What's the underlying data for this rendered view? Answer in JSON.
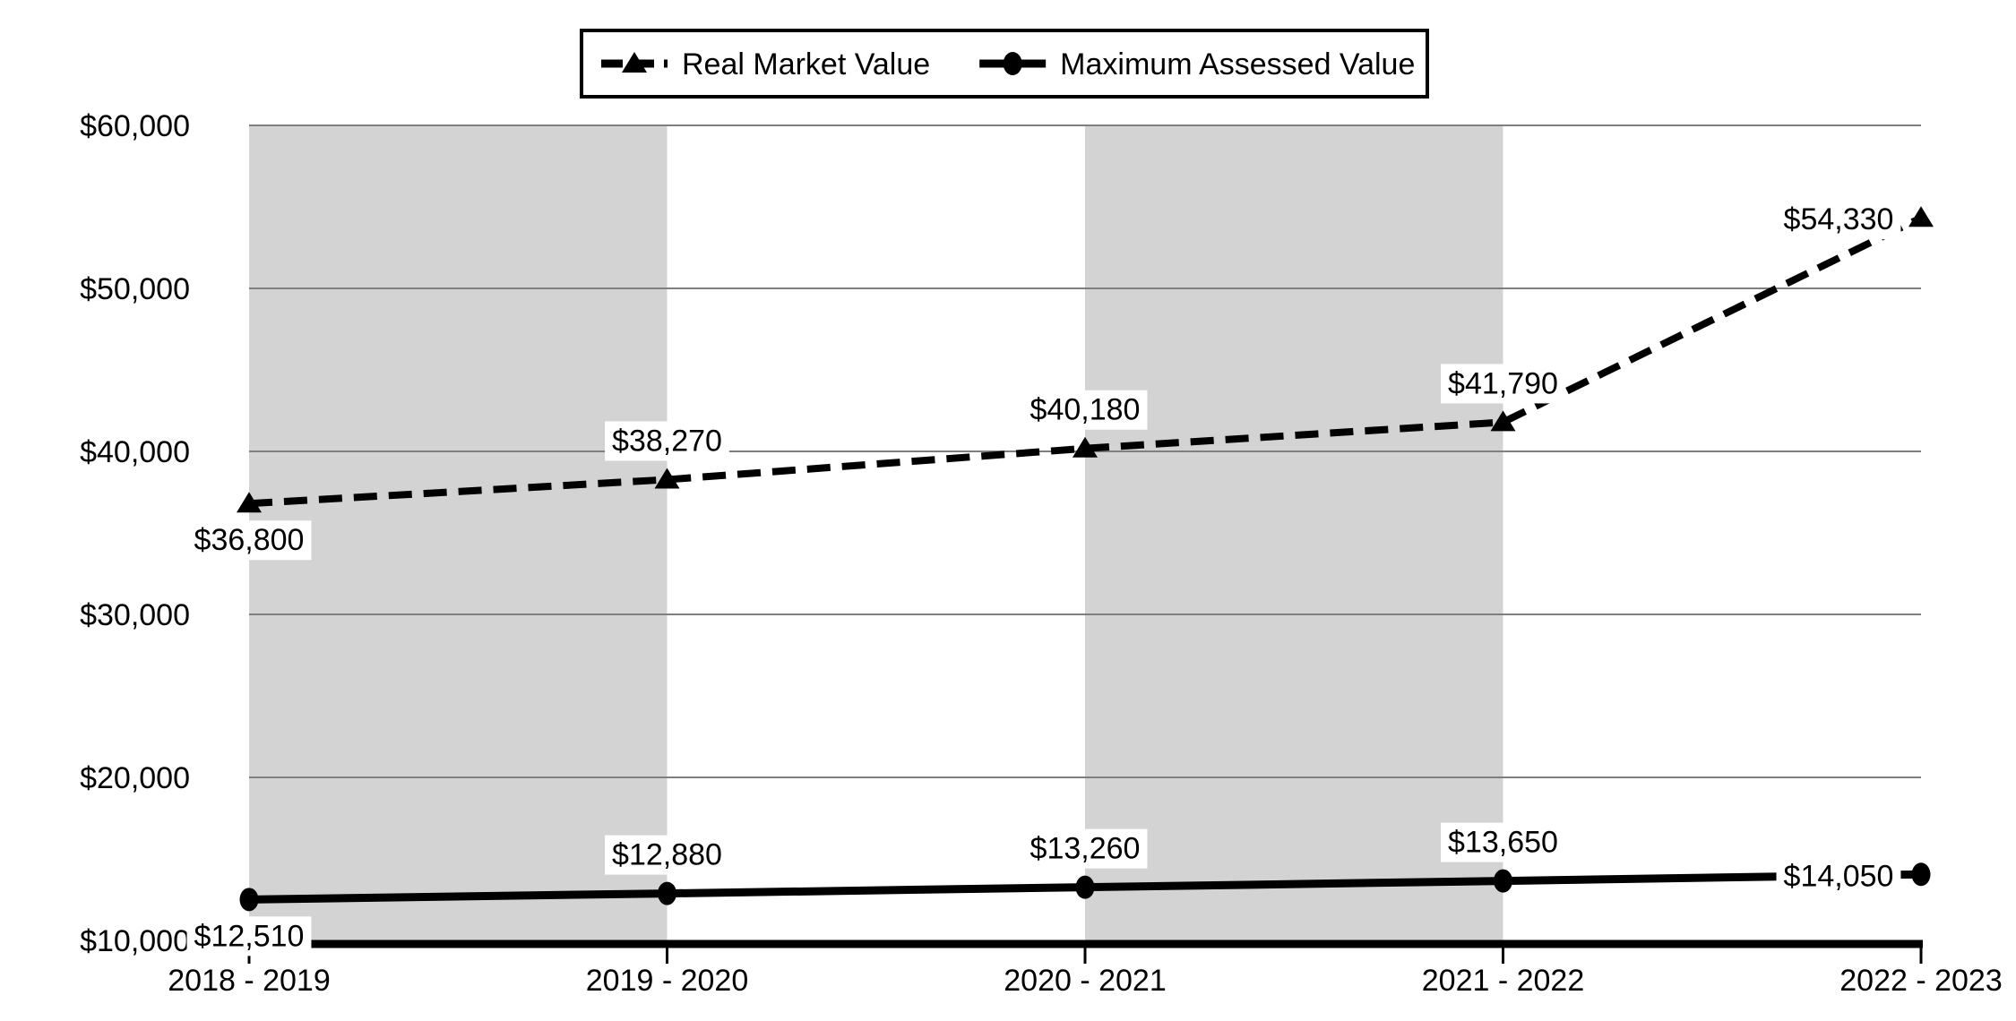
{
  "chart_data": {
    "type": "line",
    "title": "",
    "xlabel": "",
    "ylabel": "",
    "categories": [
      "2018 - 2019",
      "2019 - 2020",
      "2020 - 2021",
      "2021 - 2022",
      "2022 - 2023"
    ],
    "series": [
      {
        "name": "Real Market Value",
        "values": [
          36800,
          38270,
          40180,
          41790,
          54330
        ],
        "labels": [
          "$36,800",
          "$38,270",
          "$40,180",
          "$41,790",
          "$54,330"
        ],
        "line_style": "dashed",
        "marker": "triangle",
        "color": "#000000",
        "label_placement": [
          "below",
          "above",
          "above",
          "above",
          "left"
        ]
      },
      {
        "name": "Maximum Assessed Value",
        "values": [
          12510,
          12880,
          13260,
          13650,
          14050
        ],
        "labels": [
          "$12,510",
          "$12,880",
          "$13,260",
          "$13,650",
          "$14,050"
        ],
        "line_style": "solid",
        "marker": "circle",
        "color": "#000000",
        "label_placement": [
          "below",
          "above",
          "above",
          "above",
          "left"
        ]
      }
    ],
    "y_ticks": [
      {
        "value": 10000,
        "label": "$10,000"
      },
      {
        "value": 20000,
        "label": "$20,000"
      },
      {
        "value": 30000,
        "label": "$30,000"
      },
      {
        "value": 40000,
        "label": "$40,000"
      },
      {
        "value": 50000,
        "label": "$50,000"
      },
      {
        "value": 60000,
        "label": "$60,000"
      }
    ],
    "ylim": [
      10000,
      60000
    ],
    "grid": "horizontal",
    "legend_position": "top",
    "plot_bands": {
      "between_category_indexes": [
        [
          0,
          1
        ],
        [
          2,
          3
        ]
      ]
    },
    "colors": {
      "line": "#000000",
      "text": "#000000",
      "gridline": "#7f7f7f",
      "band": "#d3d3d3",
      "background": "#ffffff",
      "label_background": "#ffffff",
      "legend_border": "#000000",
      "legend_background": "#ffffff"
    }
  }
}
